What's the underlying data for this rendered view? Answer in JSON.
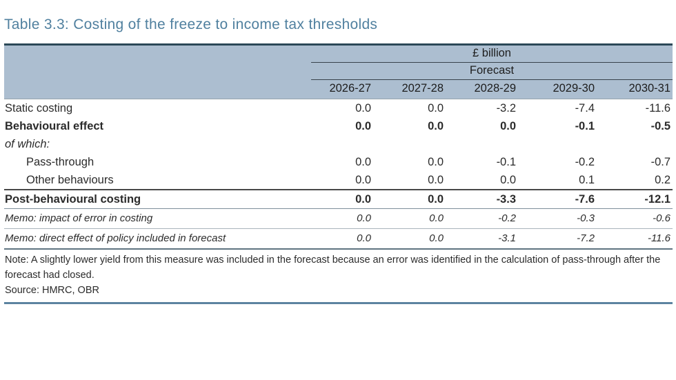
{
  "page": {
    "title": "Table 3.3: Costing of the freeze to income tax thresholds"
  },
  "table": {
    "unit_label": "£ billion",
    "forecast_label": "Forecast",
    "columns": [
      "2026-27",
      "2027-28",
      "2028-29",
      "2029-30",
      "2030-31"
    ],
    "rows": [
      {
        "label": "Static costing",
        "style": "plain",
        "values": [
          "0.0",
          "0.0",
          "-3.2",
          "-7.4",
          "-11.6"
        ]
      },
      {
        "label": "Behavioural effect",
        "style": "bold",
        "values": [
          "0.0",
          "0.0",
          "0.0",
          "-0.1",
          "-0.5"
        ]
      },
      {
        "label": "of which:",
        "style": "ofwhich",
        "values": [
          "",
          "",
          "",
          "",
          ""
        ]
      },
      {
        "label": "Pass-through",
        "style": "indent",
        "values": [
          "0.0",
          "0.0",
          "-0.1",
          "-0.2",
          "-0.7"
        ]
      },
      {
        "label": "Other behaviours",
        "style": "indent",
        "values": [
          "0.0",
          "0.0",
          "0.0",
          "0.1",
          "0.2"
        ]
      },
      {
        "label": "Post-behavioural costing",
        "style": "total",
        "values": [
          "0.0",
          "0.0",
          "-3.3",
          "-7.6",
          "-12.1"
        ]
      },
      {
        "label": "Memo: impact of error in costing",
        "style": "memo",
        "values": [
          "0.0",
          "0.0",
          "-0.2",
          "-0.3",
          "-0.6"
        ]
      },
      {
        "label": "Memo: direct effect of policy included in forecast",
        "style": "memoLast",
        "values": [
          "0.0",
          "0.0",
          "-3.1",
          "-7.2",
          "-11.6"
        ]
      }
    ],
    "note": "Note: A slightly lower yield from this measure was included in the forecast because an error was identified in the calculation of pass-through after the forecast had closed.",
    "source": "Source: HMRC, OBR"
  },
  "colors": {
    "title_text": "#50809f",
    "header_background": "#acbed0",
    "top_rule": "#2b4857",
    "bottom_rule": "#5c83a0"
  }
}
